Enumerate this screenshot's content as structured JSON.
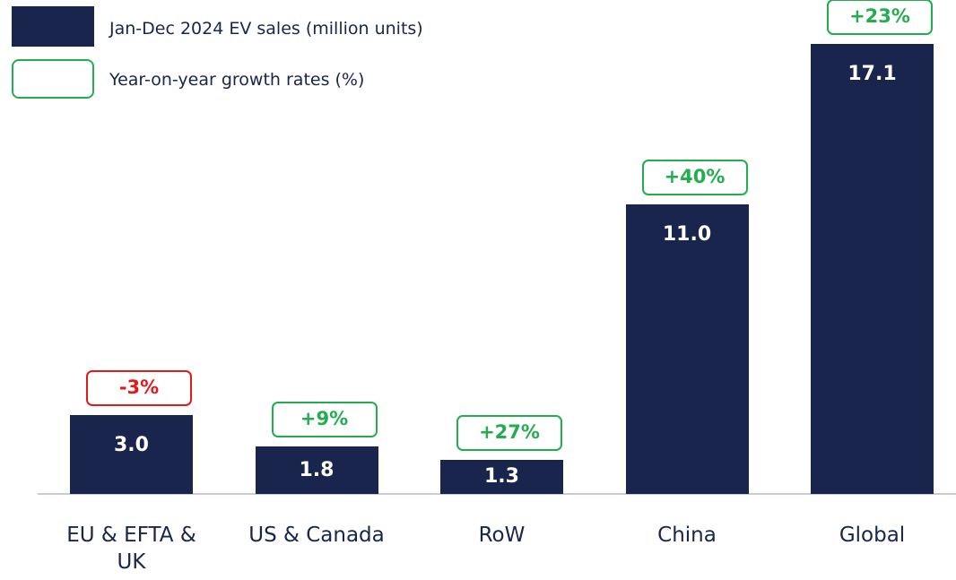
{
  "chart_data": {
    "type": "bar",
    "categories": [
      "EU & EFTA & UK",
      "US & Canada",
      "RoW",
      "China",
      "Global"
    ],
    "series": [
      {
        "name": "Jan-Dec 2024 EV sales (million units)",
        "color": "#19254d",
        "values": [
          3,
          1.8,
          1.3,
          11,
          17.1
        ],
        "value_labels": [
          "3.0",
          "1.8",
          "1.3",
          "11.0",
          "17.1"
        ]
      }
    ],
    "growth": {
      "name": "Year-on-year growth rates (%)",
      "color": "#22ad4e",
      "negative_color": "#e3191c",
      "values": [
        -3,
        9,
        27,
        40,
        23
      ],
      "value_labels": [
        "-3%",
        "+9%",
        "+27%",
        "+40%",
        "+23%"
      ]
    }
  }
}
